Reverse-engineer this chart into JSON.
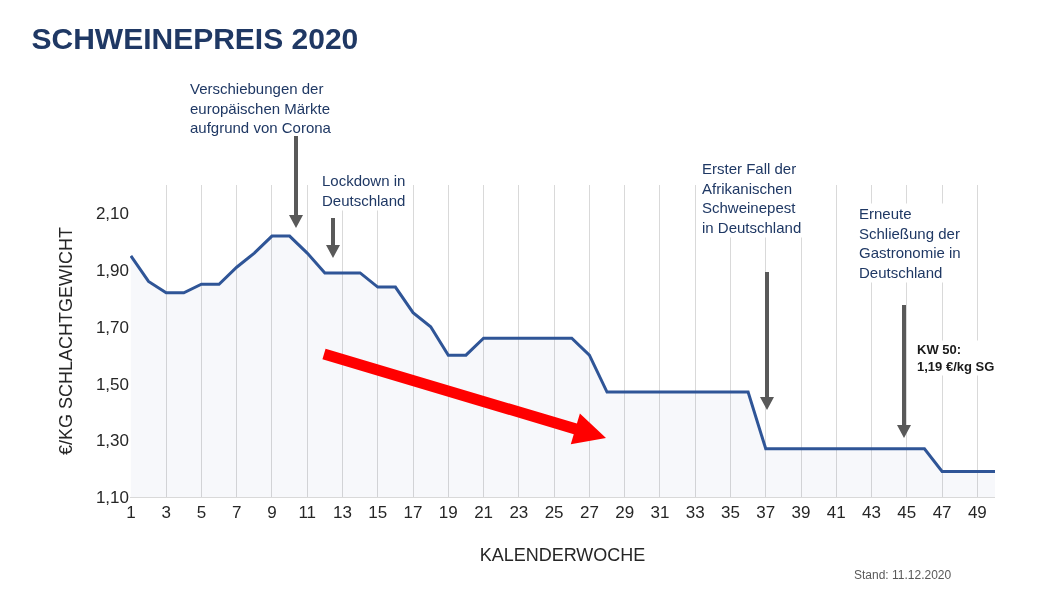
{
  "chart_data": {
    "type": "area",
    "title": "SCHWEINEPREIS 2020",
    "xlabel": "KALENDERWOCHE",
    "ylabel": "€/KG SCHLACHTGEWICHT",
    "x": [
      1,
      2,
      3,
      4,
      5,
      6,
      7,
      8,
      9,
      10,
      11,
      12,
      13,
      14,
      15,
      16,
      17,
      18,
      19,
      20,
      21,
      22,
      23,
      24,
      25,
      26,
      27,
      28,
      29,
      30,
      31,
      32,
      33,
      34,
      35,
      36,
      37,
      38,
      39,
      40,
      41,
      42,
      43,
      44,
      45,
      46,
      47,
      48,
      49,
      50
    ],
    "series": [
      {
        "color": "#2f5597",
        "values": [
          1.95,
          1.86,
          1.82,
          1.82,
          1.85,
          1.85,
          1.91,
          1.96,
          2.02,
          2.02,
          1.96,
          1.89,
          1.89,
          1.89,
          1.84,
          1.84,
          1.75,
          1.7,
          1.6,
          1.6,
          1.66,
          1.66,
          1.66,
          1.66,
          1.66,
          1.66,
          1.6,
          1.47,
          1.47,
          1.47,
          1.47,
          1.47,
          1.47,
          1.47,
          1.47,
          1.47,
          1.27,
          1.27,
          1.27,
          1.27,
          1.27,
          1.27,
          1.27,
          1.27,
          1.27,
          1.27,
          1.19,
          1.19,
          1.19,
          1.19
        ]
      }
    ],
    "xlim": [
      1,
      50
    ],
    "xticks": [
      1,
      3,
      5,
      7,
      9,
      11,
      13,
      15,
      17,
      19,
      21,
      23,
      25,
      27,
      29,
      31,
      33,
      35,
      37,
      39,
      41,
      43,
      45,
      47,
      49
    ],
    "ylim": [
      1.1,
      2.2
    ],
    "yticks": [
      {
        "value": 1.1,
        "label": "1,10"
      },
      {
        "value": 1.3,
        "label": "1,30"
      },
      {
        "value": 1.5,
        "label": "1,50"
      },
      {
        "value": 1.7,
        "label": "1,70"
      },
      {
        "value": 1.9,
        "label": "1,90"
      },
      {
        "value": 2.1,
        "label": "2,10"
      }
    ],
    "grid": "x",
    "annotations": [
      "Verschiebungen der\neuropäischen Märkte\naufgrund von Corona",
      "Lockdown in\nDeutschland",
      "Erster Fall der\nAfrikanischen\nSchweinepest\nin Deutschland",
      "Erneute\nSchließung der\nGastronomie in\nDeutschland",
      "KW 50:\n1,19 €/kg SG",
      "Stand: 11.12.2020"
    ]
  }
}
